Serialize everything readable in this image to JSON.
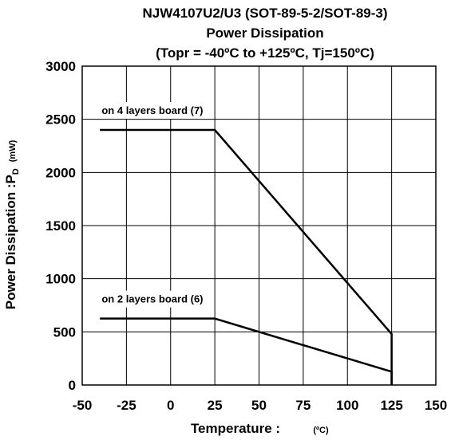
{
  "chart_data": {
    "type": "line",
    "title_lines": [
      "NJW4107U2/U3 (SOT-89-5-2/SOT-89-3)",
      "Power Dissipation",
      "(Topr = -40ºC to +125ºC, Tj=150ºC)"
    ],
    "xlabel": "Temperature :",
    "xlabel_unit": "(ºC)",
    "ylabel": "Power Dissipation :P",
    "ylabel_subscript": "D",
    "ylabel_unit": "(mW)",
    "xlim": [
      -50,
      150
    ],
    "ylim": [
      0,
      3000
    ],
    "x_ticks": [
      -50,
      -25,
      0,
      25,
      50,
      75,
      100,
      125,
      150
    ],
    "y_ticks": [
      0,
      500,
      1000,
      1500,
      2000,
      2500,
      3000
    ],
    "grid": true,
    "series": [
      {
        "name": "on 4 layers board (7)",
        "x": [
          -40,
          25,
          125,
          125
        ],
        "y": [
          2400,
          2400,
          480,
          0
        ]
      },
      {
        "name": "on 2 layers board (6)",
        "x": [
          -40,
          25,
          125,
          125
        ],
        "y": [
          625,
          625,
          125,
          0
        ]
      }
    ],
    "colors": {
      "line": "#000000",
      "grid": "#000000",
      "background": "#ffffff"
    }
  }
}
